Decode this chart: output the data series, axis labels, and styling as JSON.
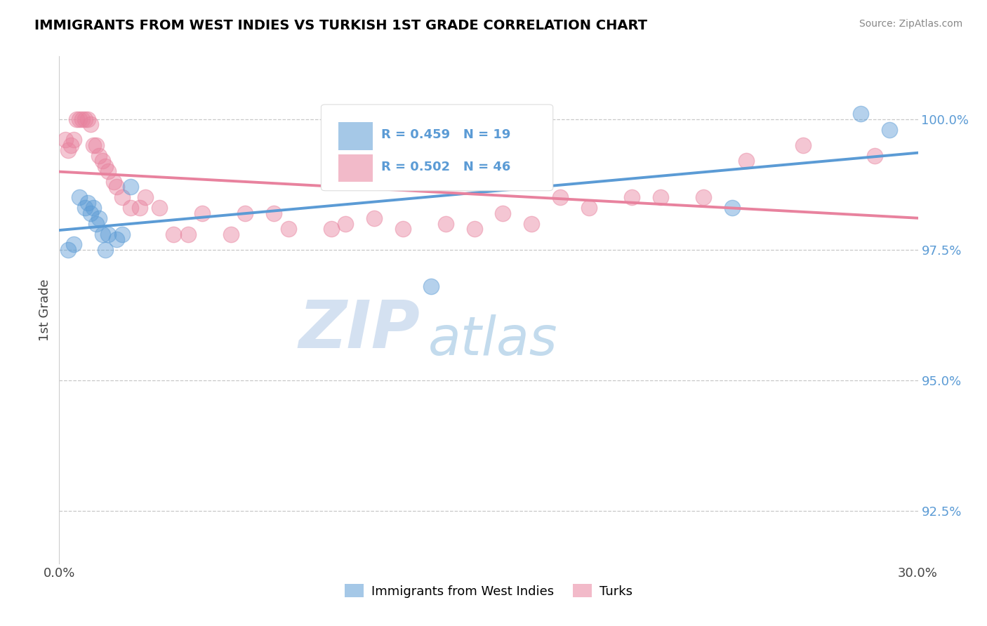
{
  "title": "IMMIGRANTS FROM WEST INDIES VS TURKISH 1ST GRADE CORRELATION CHART",
  "source": "Source: ZipAtlas.com",
  "ylabel": "1st Grade",
  "xlim": [
    0.0,
    30.0
  ],
  "ylim": [
    91.5,
    101.2
  ],
  "yticks": [
    92.5,
    95.0,
    97.5,
    100.0
  ],
  "ytick_labels": [
    "92.5%",
    "95.0%",
    "97.5%",
    "100.0%"
  ],
  "xticks": [
    0.0,
    5.0,
    10.0,
    15.0,
    20.0,
    25.0,
    30.0
  ],
  "xtick_labels": [
    "0.0%",
    "",
    "",
    "",
    "",
    "",
    "30.0%"
  ],
  "legend_entries": [
    {
      "label": "Immigrants from West Indies",
      "color": "#7eb3e0"
    },
    {
      "label": "Turks",
      "color": "#f0a0b0"
    }
  ],
  "r_blue": 0.459,
  "n_blue": 19,
  "r_pink": 0.502,
  "n_pink": 46,
  "blue_color": "#5b9bd5",
  "pink_color": "#e8829e",
  "background_color": "#ffffff",
  "grid_color": "#c8c8c8",
  "title_color": "#000000",
  "axis_color": "#444444",
  "blue_scatter_x": [
    0.3,
    0.5,
    0.7,
    0.9,
    1.0,
    1.1,
    1.2,
    1.3,
    1.4,
    1.5,
    1.6,
    1.7,
    2.0,
    2.2,
    2.5,
    13.0,
    23.5,
    28.0,
    29.0
  ],
  "blue_scatter_y": [
    97.5,
    97.6,
    98.5,
    98.3,
    98.4,
    98.2,
    98.3,
    98.0,
    98.1,
    97.8,
    97.5,
    97.8,
    97.7,
    97.8,
    98.7,
    96.8,
    98.3,
    100.1,
    99.8
  ],
  "pink_scatter_x": [
    0.2,
    0.3,
    0.4,
    0.5,
    0.6,
    0.7,
    0.8,
    0.9,
    1.0,
    1.1,
    1.2,
    1.3,
    1.4,
    1.5,
    1.6,
    1.7,
    1.9,
    2.0,
    2.2,
    2.5,
    2.8,
    3.0,
    3.5,
    4.0,
    4.5,
    5.0,
    6.0,
    6.5,
    7.5,
    8.0,
    9.5,
    10.0,
    11.0,
    12.0,
    13.5,
    14.5,
    15.5,
    16.5,
    17.5,
    18.5,
    20.0,
    21.0,
    22.5,
    24.0,
    26.0,
    28.5
  ],
  "pink_scatter_y": [
    99.6,
    99.4,
    99.5,
    99.6,
    100.0,
    100.0,
    100.0,
    100.0,
    100.0,
    99.9,
    99.5,
    99.5,
    99.3,
    99.2,
    99.1,
    99.0,
    98.8,
    98.7,
    98.5,
    98.3,
    98.3,
    98.5,
    98.3,
    97.8,
    97.8,
    98.2,
    97.8,
    98.2,
    98.2,
    97.9,
    97.9,
    98.0,
    98.1,
    97.9,
    98.0,
    97.9,
    98.2,
    98.0,
    98.5,
    98.3,
    98.5,
    98.5,
    98.5,
    99.2,
    99.5,
    99.3
  ],
  "watermark_zip": "ZIP",
  "watermark_atlas": "atlas",
  "figsize": [
    14.06,
    8.92
  ],
  "dpi": 100
}
